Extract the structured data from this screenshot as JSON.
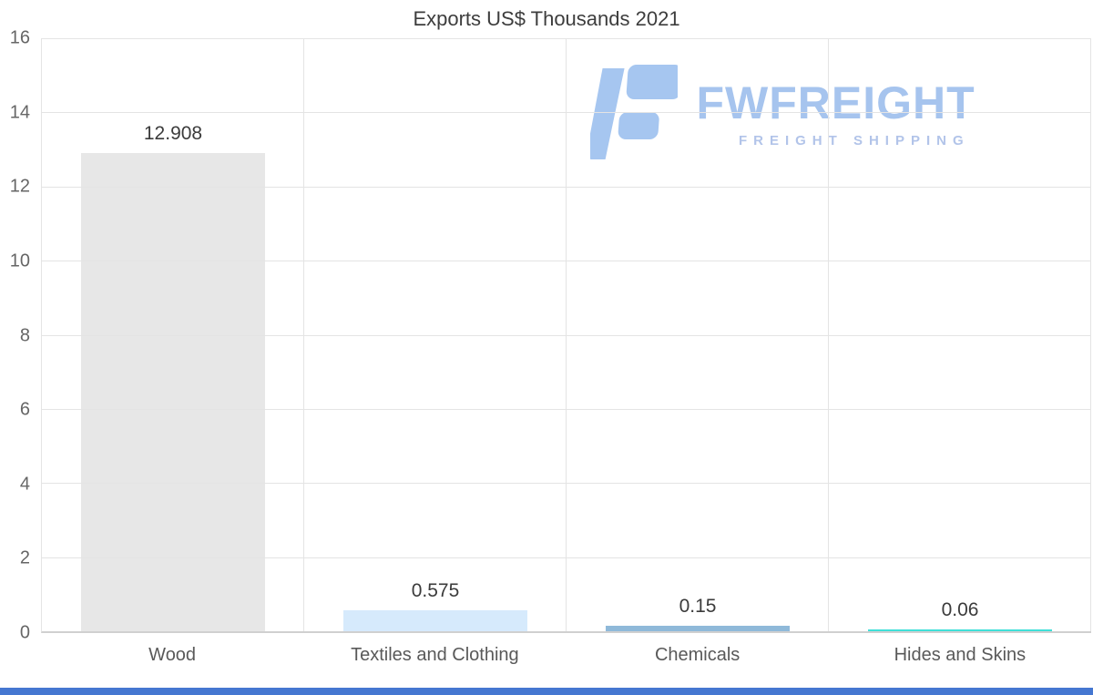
{
  "chart_data": {
    "type": "bar",
    "title": "Exports US$ Thousands 2021",
    "categories": [
      "Wood",
      "Textiles and Clothing",
      "Chemicals",
      "Hides and Skins"
    ],
    "values": [
      12.908,
      0.575,
      0.15,
      0.06
    ],
    "value_labels": [
      "12.908",
      "0.575",
      "0.15",
      "0.06"
    ],
    "bar_colors": [
      "#e7e7e7",
      "#d6eafc",
      "#8fb9d9",
      "#3fe0d8"
    ],
    "xlabel": "",
    "ylabel": "",
    "ylim": [
      0,
      16
    ],
    "yticks": [
      0,
      2,
      4,
      6,
      8,
      10,
      12,
      14,
      16
    ],
    "grid": true,
    "legend": "none"
  },
  "watermark": {
    "brand": "FWFREIGHT",
    "tagline": "FREIGHT SHIPPING",
    "color": "#a6c4ee"
  },
  "page": {
    "bottom_bar_color": "#4577d1"
  }
}
